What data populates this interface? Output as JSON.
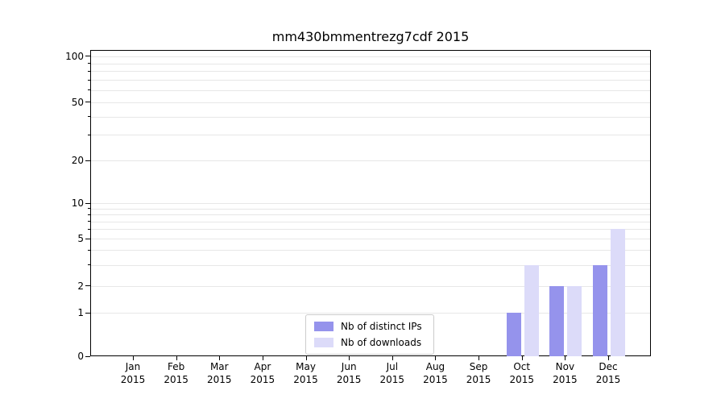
{
  "chart_data": {
    "type": "bar",
    "title": "mm430bmmentrezg7cdf 2015",
    "categories": [
      "Jan 2015",
      "Feb 2015",
      "Mar 2015",
      "Apr 2015",
      "May 2015",
      "Jun 2015",
      "Jul 2015",
      "Aug 2015",
      "Sep 2015",
      "Oct 2015",
      "Nov 2015",
      "Dec 2015"
    ],
    "series": [
      {
        "name": "Nb of distinct IPs",
        "color": "#9593ec",
        "values": [
          0,
          0,
          0,
          0,
          0,
          0,
          0,
          0,
          0,
          1,
          2,
          3
        ]
      },
      {
        "name": "Nb of downloads",
        "color": "#dcdbf9",
        "values": [
          0,
          0,
          0,
          0,
          0,
          0,
          0,
          0,
          0,
          3,
          2,
          6
        ]
      }
    ],
    "y_ticks": [
      100,
      50,
      20,
      10,
      5,
      2,
      1,
      0
    ],
    "minor_gridline_values": [
      1,
      2,
      3,
      4,
      5,
      6,
      7,
      8,
      9,
      10,
      20,
      30,
      40,
      50,
      60,
      70,
      80,
      90,
      100
    ],
    "scale": "log-like (linear below 1)",
    "ylim": [
      0,
      110
    ],
    "xlabel": "",
    "ylabel": "",
    "grid": true,
    "legend_position": "lower center",
    "colors": {
      "gridline": "#e7e7e7",
      "axis": "#000000",
      "background": "#ffffff"
    }
  }
}
